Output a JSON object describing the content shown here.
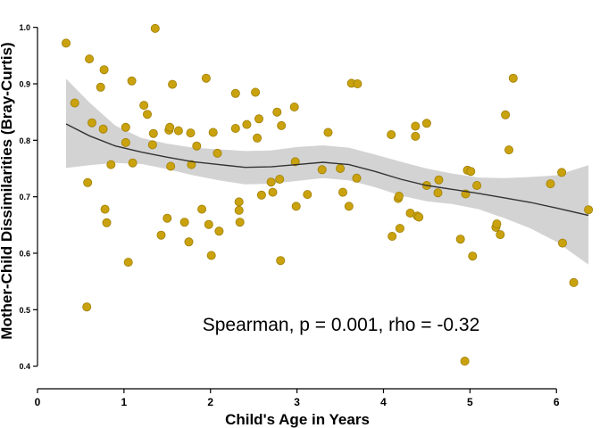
{
  "chart_data": {
    "type": "scatter",
    "xlabel": "Child's Age in Years",
    "ylabel": "Mother-Child Dissimilarities (Bray-Curtis)",
    "xlim": [
      0,
      6.4
    ],
    "ylim": [
      0.36,
      1.02
    ],
    "x_ticks": [
      "0",
      "1",
      "2",
      "3",
      "4",
      "5",
      "6"
    ],
    "y_ticks": [
      "0.4",
      "0.5",
      "0.6",
      "0.7",
      "0.8",
      "0.9",
      "1.0"
    ],
    "grid": false,
    "legend": "none",
    "annotation": "Spearman, p = 0.001, rho = -0.32",
    "point_color": "#c9a20e",
    "point_edge_color": "#a07f06",
    "line_color": "#333333",
    "ribbon_color": "#d3d3d3",
    "points": [
      [
        0.33,
        0.972
      ],
      [
        0.43,
        0.866
      ],
      [
        0.57,
        0.505
      ],
      [
        0.58,
        0.725
      ],
      [
        0.6,
        0.944
      ],
      [
        0.63,
        0.831
      ],
      [
        0.73,
        0.894
      ],
      [
        0.76,
        0.82
      ],
      [
        0.77,
        0.925
      ],
      [
        0.78,
        0.678
      ],
      [
        0.8,
        0.654
      ],
      [
        0.85,
        0.757
      ],
      [
        1.02,
        0.823
      ],
      [
        1.02,
        0.796
      ],
      [
        1.05,
        0.584
      ],
      [
        1.09,
        0.905
      ],
      [
        1.1,
        0.76
      ],
      [
        1.23,
        0.862
      ],
      [
        1.27,
        0.846
      ],
      [
        1.33,
        0.792
      ],
      [
        1.34,
        0.812
      ],
      [
        1.36,
        0.998
      ],
      [
        1.43,
        0.632
      ],
      [
        1.5,
        0.662
      ],
      [
        1.52,
        0.818
      ],
      [
        1.54,
        0.754
      ],
      [
        1.56,
        0.899
      ],
      [
        1.53,
        0.823
      ],
      [
        1.63,
        0.817
      ],
      [
        1.7,
        0.655
      ],
      [
        1.75,
        0.62
      ],
      [
        1.77,
        0.813
      ],
      [
        1.78,
        0.757
      ],
      [
        1.84,
        0.79
      ],
      [
        1.9,
        0.678
      ],
      [
        1.95,
        0.91
      ],
      [
        1.98,
        0.651
      ],
      [
        2.01,
        0.596
      ],
      [
        2.03,
        0.814
      ],
      [
        2.08,
        0.777
      ],
      [
        2.1,
        0.639
      ],
      [
        2.29,
        0.883
      ],
      [
        2.29,
        0.821
      ],
      [
        2.33,
        0.691
      ],
      [
        2.33,
        0.676
      ],
      [
        2.34,
        0.655
      ],
      [
        2.42,
        0.828
      ],
      [
        2.52,
        0.885
      ],
      [
        2.54,
        0.804
      ],
      [
        2.56,
        0.838
      ],
      [
        2.59,
        0.703
      ],
      [
        2.7,
        0.726
      ],
      [
        2.72,
        0.708
      ],
      [
        2.77,
        0.85
      ],
      [
        2.8,
        0.731
      ],
      [
        2.81,
        0.587
      ],
      [
        2.82,
        0.826
      ],
      [
        2.97,
        0.859
      ],
      [
        2.98,
        0.762
      ],
      [
        2.99,
        0.683
      ],
      [
        3.12,
        0.704
      ],
      [
        3.29,
        0.748
      ],
      [
        3.36,
        0.814
      ],
      [
        3.5,
        0.75
      ],
      [
        3.53,
        0.708
      ],
      [
        3.6,
        0.683
      ],
      [
        3.63,
        0.901
      ],
      [
        3.69,
        0.733
      ],
      [
        3.7,
        0.9
      ],
      [
        4.09,
        0.81
      ],
      [
        4.1,
        0.63
      ],
      [
        4.17,
        0.697
      ],
      [
        4.18,
        0.701
      ],
      [
        4.19,
        0.644
      ],
      [
        4.31,
        0.671
      ],
      [
        4.37,
        0.807
      ],
      [
        4.37,
        0.825
      ],
      [
        4.39,
        0.666
      ],
      [
        4.41,
        0.664
      ],
      [
        4.5,
        0.72
      ],
      [
        4.5,
        0.83
      ],
      [
        4.63,
        0.707
      ],
      [
        4.64,
        0.73
      ],
      [
        4.89,
        0.625
      ],
      [
        4.94,
        0.409
      ],
      [
        4.95,
        0.705
      ],
      [
        4.97,
        0.747
      ],
      [
        5.01,
        0.745
      ],
      [
        5.03,
        0.595
      ],
      [
        5.08,
        0.72
      ],
      [
        5.3,
        0.646
      ],
      [
        5.31,
        0.652
      ],
      [
        5.35,
        0.633
      ],
      [
        5.41,
        0.845
      ],
      [
        5.45,
        0.783
      ],
      [
        5.5,
        0.91
      ],
      [
        5.93,
        0.723
      ],
      [
        6.06,
        0.743
      ],
      [
        6.07,
        0.618
      ],
      [
        6.2,
        0.548
      ],
      [
        6.37,
        0.677
      ]
    ],
    "smooth": {
      "x": [
        0.33,
        0.6,
        0.9,
        1.2,
        1.5,
        1.8,
        2.1,
        2.4,
        2.7,
        3.0,
        3.3,
        3.6,
        3.9,
        4.2,
        4.5,
        4.8,
        5.1,
        5.4,
        5.7,
        6.0,
        6.37
      ],
      "y": [
        0.829,
        0.808,
        0.79,
        0.779,
        0.77,
        0.762,
        0.757,
        0.752,
        0.753,
        0.757,
        0.761,
        0.757,
        0.745,
        0.731,
        0.72,
        0.713,
        0.706,
        0.698,
        0.69,
        0.68,
        0.667
      ],
      "ymin": [
        0.751,
        0.756,
        0.76,
        0.758,
        0.749,
        0.738,
        0.729,
        0.722,
        0.723,
        0.728,
        0.733,
        0.729,
        0.717,
        0.702,
        0.692,
        0.687,
        0.678,
        0.662,
        0.644,
        0.62,
        0.58
      ],
      "ymax": [
        0.909,
        0.867,
        0.826,
        0.804,
        0.794,
        0.787,
        0.784,
        0.781,
        0.782,
        0.788,
        0.791,
        0.787,
        0.775,
        0.762,
        0.75,
        0.741,
        0.734,
        0.733,
        0.735,
        0.738,
        0.756
      ]
    }
  }
}
